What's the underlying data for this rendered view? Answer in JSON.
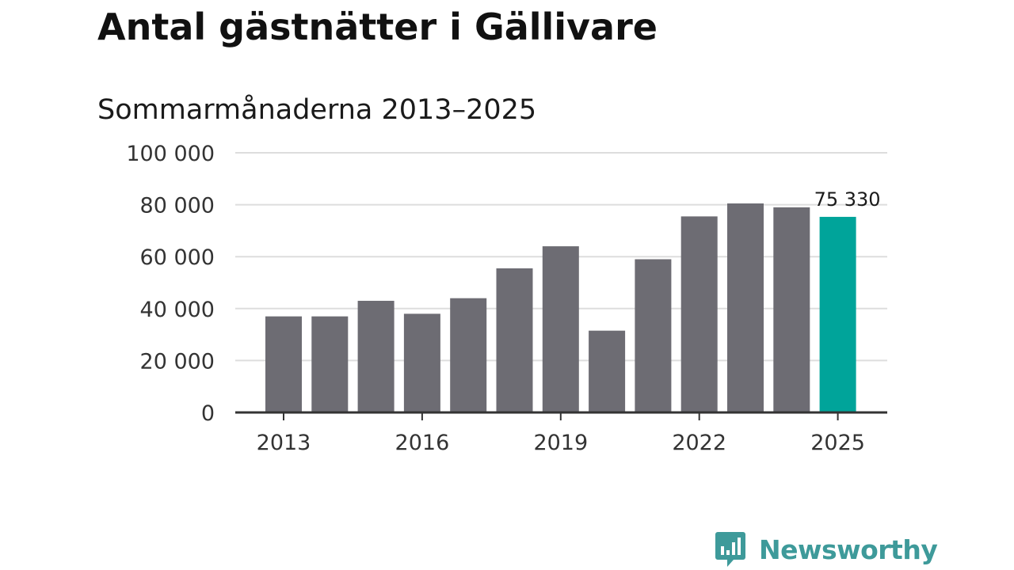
{
  "title": "Antal gästnätter i Gällivare",
  "subtitle": "Sommarmånaderna 2013–2025",
  "brand": {
    "name": "Newsworthy",
    "icon": "bar-chart-speech-bubble-icon",
    "color": "#3e9a9a"
  },
  "chart_data": {
    "type": "bar",
    "title": "Antal gästnätter i Gällivare",
    "subtitle": "Sommarmånaderna 2013–2025",
    "xlabel": "",
    "ylabel": "",
    "categories": [
      "2013",
      "2014",
      "2015",
      "2016",
      "2017",
      "2018",
      "2019",
      "2020",
      "2021",
      "2022",
      "2023",
      "2024",
      "2025"
    ],
    "values": [
      37000,
      37000,
      43000,
      38000,
      44000,
      55500,
      64000,
      31500,
      59000,
      75500,
      80500,
      79000,
      75330
    ],
    "ylim": [
      0,
      100000
    ],
    "yticks": [
      0,
      20000,
      40000,
      60000,
      80000,
      100000
    ],
    "ytick_labels": [
      "0",
      "20 000",
      "40 000",
      "60 000",
      "80 000",
      "100 000"
    ],
    "xtick_labels": [
      "2013",
      "2016",
      "2019",
      "2022",
      "2025"
    ],
    "highlight": {
      "category": "2025",
      "label": "75 330"
    },
    "grid": true,
    "legend": "none",
    "colors": {
      "bar": "#6d6c73",
      "highlight": "#00a49a",
      "grid": "#dddddd",
      "axis": "#333333"
    }
  }
}
